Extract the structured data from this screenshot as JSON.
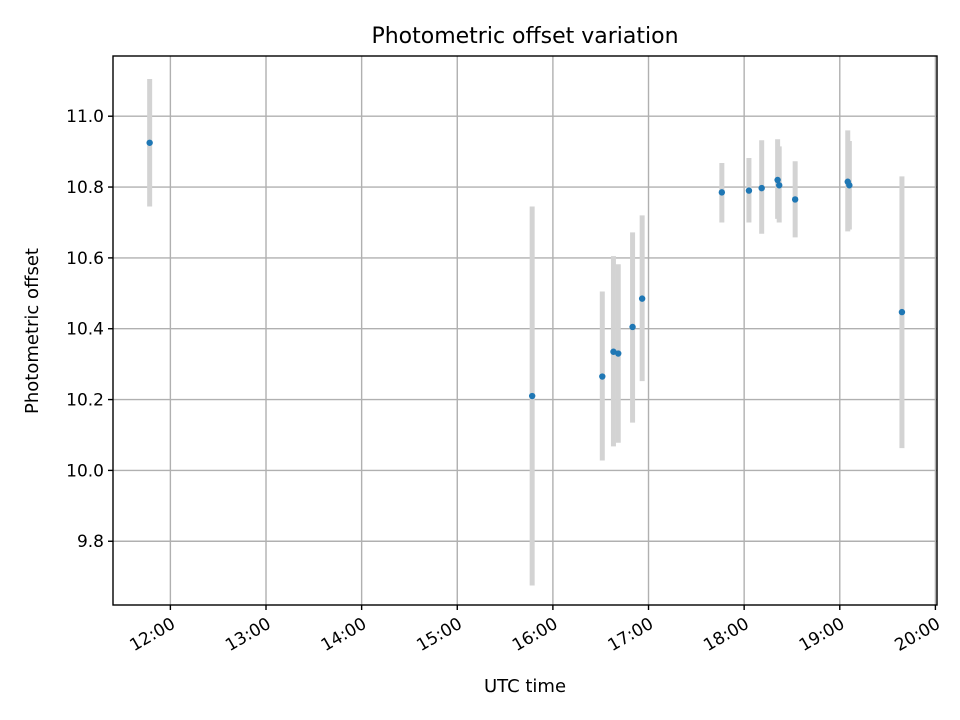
{
  "chart_data": {
    "type": "scatter",
    "title": "Photometric offset variation",
    "xlabel": "UTC time",
    "ylabel": "Photometric offset",
    "xlim": [
      "11:24",
      "20:01"
    ],
    "ylim": [
      9.62,
      11.17
    ],
    "xticks": [
      "12:00",
      "13:00",
      "14:00",
      "15:00",
      "16:00",
      "17:00",
      "18:00",
      "19:00",
      "20:00"
    ],
    "yticks": [
      "9.8",
      "10.0",
      "10.2",
      "10.4",
      "10.6",
      "10.8",
      "11.0"
    ],
    "grid": true,
    "point_color": "#1f77b4",
    "errorbar_color": "#d3d3d3",
    "series": [
      {
        "points": [
          {
            "x": "11:47",
            "y": 10.925,
            "ylow": 10.745,
            "yhigh": 11.105
          },
          {
            "x": "15:47",
            "y": 10.21,
            "ylow": 9.675,
            "yhigh": 10.745
          },
          {
            "x": "16:31",
            "y": 10.265,
            "ylow": 10.028,
            "yhigh": 10.505
          },
          {
            "x": "16:38",
            "y": 10.335,
            "ylow": 10.068,
            "yhigh": 10.605
          },
          {
            "x": "16:41",
            "y": 10.33,
            "ylow": 10.078,
            "yhigh": 10.582
          },
          {
            "x": "16:50",
            "y": 10.405,
            "ylow": 10.135,
            "yhigh": 10.672
          },
          {
            "x": "16:56",
            "y": 10.485,
            "ylow": 10.252,
            "yhigh": 10.72
          },
          {
            "x": "17:46",
            "y": 10.785,
            "ylow": 10.7,
            "yhigh": 10.868
          },
          {
            "x": "18:03",
            "y": 10.79,
            "ylow": 10.7,
            "yhigh": 10.882
          },
          {
            "x": "18:11",
            "y": 10.797,
            "ylow": 10.668,
            "yhigh": 10.932
          },
          {
            "x": "18:21",
            "y": 10.82,
            "ylow": 10.71,
            "yhigh": 10.935
          },
          {
            "x": "18:22",
            "y": 10.805,
            "ylow": 10.7,
            "yhigh": 10.915
          },
          {
            "x": "18:32",
            "y": 10.765,
            "ylow": 10.658,
            "yhigh": 10.873
          },
          {
            "x": "19:05",
            "y": 10.815,
            "ylow": 10.675,
            "yhigh": 10.96
          },
          {
            "x": "19:06",
            "y": 10.805,
            "ylow": 10.68,
            "yhigh": 10.93
          },
          {
            "x": "19:39",
            "y": 10.447,
            "ylow": 10.063,
            "yhigh": 10.83
          }
        ]
      }
    ]
  }
}
